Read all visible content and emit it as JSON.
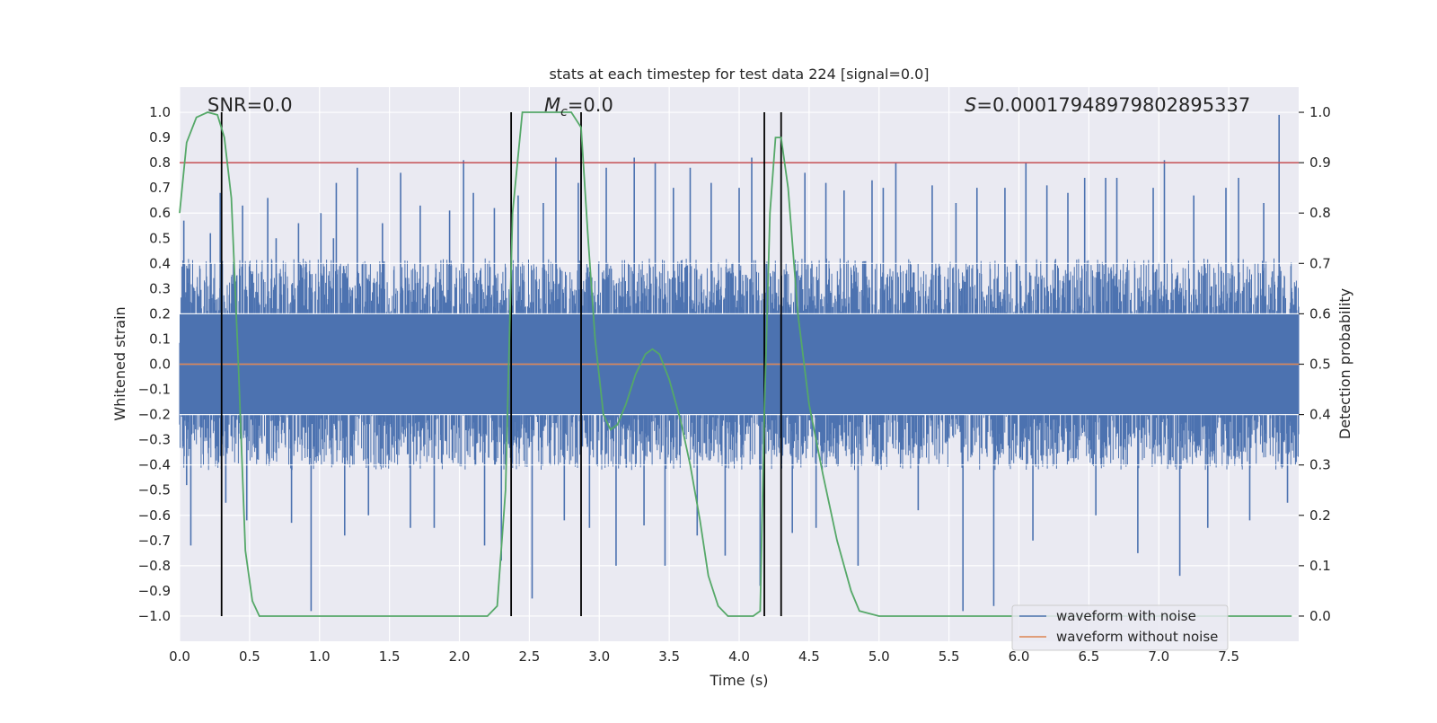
{
  "chart_data": {
    "type": "line",
    "title": "stats at each timestep for test data 224 [signal=0.0]",
    "xlabel": "Time (s)",
    "ylabel": "Whitened strain",
    "y2label": "Detection probability",
    "xlim": [
      0.0,
      8.0
    ],
    "ylim": [
      -1.1,
      1.1
    ],
    "y2lim": [
      -0.05,
      1.05
    ],
    "xticks": [
      0.0,
      0.5,
      1.0,
      1.5,
      2.0,
      2.5,
      3.0,
      3.5,
      4.0,
      4.5,
      5.0,
      5.5,
      6.0,
      6.5,
      7.0,
      7.5
    ],
    "xtick_labels": [
      "0.0",
      "0.5",
      "1.0",
      "1.5",
      "2.0",
      "2.5",
      "3.0",
      "3.5",
      "4.0",
      "4.5",
      "5.0",
      "5.5",
      "6.0",
      "6.5",
      "7.0",
      "7.5"
    ],
    "yticks": [
      1.0,
      0.9,
      0.8,
      0.7,
      0.6,
      0.5,
      0.4,
      0.3,
      0.2,
      0.1,
      0.0,
      -0.1,
      -0.2,
      -0.3,
      -0.4,
      -0.5,
      -0.6,
      -0.7,
      -0.8,
      -0.9,
      -1.0
    ],
    "ytick_labels": [
      "1.0",
      "0.9",
      "0.8",
      "0.7",
      "0.6",
      "0.5",
      "0.4",
      "0.3",
      "0.2",
      "0.1",
      "0.0",
      "−0.1",
      "−0.2",
      "−0.3",
      "−0.4",
      "−0.5",
      "−0.6",
      "−0.7",
      "−0.8",
      "−0.9",
      "−1.0"
    ],
    "y2ticks": [
      1.0,
      0.9,
      0.8,
      0.7,
      0.6,
      0.5,
      0.4,
      0.3,
      0.2,
      0.1,
      0.0
    ],
    "y2tick_labels": [
      "1.0",
      "0.9",
      "0.8",
      "0.7",
      "0.6",
      "0.5",
      "0.4",
      "0.3",
      "0.2",
      "0.1",
      "0.0"
    ],
    "grid": true,
    "legend_position": "bottom-right",
    "annotations": {
      "snr": "SNR=0.0",
      "mc_symbol": "M",
      "mc_subscript": "c",
      "mc_value": "=0.0",
      "s_symbol": "S",
      "s_value": "=0.00017948979802895337"
    },
    "threshold": {
      "value": 0.9,
      "axis": "y2",
      "color": "#c44e52"
    },
    "vertical_lines": [
      0.3,
      2.37,
      2.87,
      4.18,
      4.3
    ],
    "series": [
      {
        "name": "waveform with noise",
        "axis": "y",
        "color": "#4c72b0",
        "envelope": {
          "x_range": [
            0.0,
            8.0
          ],
          "typical_abs_max": 0.42
        },
        "peaks": [
          {
            "x": 0.03,
            "y": 0.57
          },
          {
            "x": 0.05,
            "y": -0.48
          },
          {
            "x": 0.08,
            "y": -0.72
          },
          {
            "x": 0.22,
            "y": 0.52
          },
          {
            "x": 0.29,
            "y": 0.68
          },
          {
            "x": 0.33,
            "y": -0.55
          },
          {
            "x": 0.45,
            "y": 0.63
          },
          {
            "x": 0.48,
            "y": -0.62
          },
          {
            "x": 0.63,
            "y": 0.66
          },
          {
            "x": 0.69,
            "y": 0.5
          },
          {
            "x": 0.8,
            "y": -0.63
          },
          {
            "x": 0.85,
            "y": 0.56
          },
          {
            "x": 0.94,
            "y": -0.98
          },
          {
            "x": 1.01,
            "y": 0.6
          },
          {
            "x": 1.1,
            "y": 0.5
          },
          {
            "x": 1.12,
            "y": 0.72
          },
          {
            "x": 1.18,
            "y": -0.68
          },
          {
            "x": 1.27,
            "y": 0.78
          },
          {
            "x": 1.35,
            "y": -0.6
          },
          {
            "x": 1.45,
            "y": 0.56
          },
          {
            "x": 1.58,
            "y": 0.76
          },
          {
            "x": 1.65,
            "y": -0.65
          },
          {
            "x": 1.72,
            "y": 0.63
          },
          {
            "x": 1.82,
            "y": -0.65
          },
          {
            "x": 1.93,
            "y": 0.61
          },
          {
            "x": 2.03,
            "y": 0.81
          },
          {
            "x": 2.1,
            "y": 0.68
          },
          {
            "x": 2.18,
            "y": -0.72
          },
          {
            "x": 2.25,
            "y": 0.62
          },
          {
            "x": 2.3,
            "y": -0.78
          },
          {
            "x": 2.37,
            "y": 0.52
          },
          {
            "x": 2.42,
            "y": 0.67
          },
          {
            "x": 2.52,
            "y": -0.93
          },
          {
            "x": 2.6,
            "y": 0.64
          },
          {
            "x": 2.69,
            "y": 0.82
          },
          {
            "x": 2.75,
            "y": -0.62
          },
          {
            "x": 2.85,
            "y": 0.72
          },
          {
            "x": 2.87,
            "y": 0.86
          },
          {
            "x": 2.93,
            "y": -0.65
          },
          {
            "x": 3.05,
            "y": 0.78
          },
          {
            "x": 3.12,
            "y": -0.8
          },
          {
            "x": 3.25,
            "y": 0.82
          },
          {
            "x": 3.32,
            "y": -0.64
          },
          {
            "x": 3.4,
            "y": 0.8
          },
          {
            "x": 3.47,
            "y": -0.8
          },
          {
            "x": 3.53,
            "y": 0.7
          },
          {
            "x": 3.65,
            "y": 0.78
          },
          {
            "x": 3.7,
            "y": -0.68
          },
          {
            "x": 3.8,
            "y": 0.72
          },
          {
            "x": 3.9,
            "y": -0.76
          },
          {
            "x": 4.0,
            "y": 0.7
          },
          {
            "x": 4.09,
            "y": 0.82
          },
          {
            "x": 4.15,
            "y": -0.88
          },
          {
            "x": 4.3,
            "y": 0.79
          },
          {
            "x": 4.38,
            "y": -0.67
          },
          {
            "x": 4.47,
            "y": 0.76
          },
          {
            "x": 4.55,
            "y": -0.65
          },
          {
            "x": 4.62,
            "y": 0.72
          },
          {
            "x": 4.75,
            "y": 0.69
          },
          {
            "x": 4.85,
            "y": -0.8
          },
          {
            "x": 4.95,
            "y": 0.73
          },
          {
            "x": 5.03,
            "y": 0.7
          },
          {
            "x": 5.12,
            "y": 0.8
          },
          {
            "x": 5.28,
            "y": -0.58
          },
          {
            "x": 5.38,
            "y": 0.71
          },
          {
            "x": 5.55,
            "y": 0.64
          },
          {
            "x": 5.6,
            "y": -0.98
          },
          {
            "x": 5.7,
            "y": 0.7
          },
          {
            "x": 5.82,
            "y": -0.96
          },
          {
            "x": 5.9,
            "y": 0.7
          },
          {
            "x": 6.05,
            "y": 0.8
          },
          {
            "x": 6.1,
            "y": -0.7
          },
          {
            "x": 6.2,
            "y": 0.71
          },
          {
            "x": 6.35,
            "y": 0.68
          },
          {
            "x": 6.47,
            "y": 0.74
          },
          {
            "x": 6.55,
            "y": -0.6
          },
          {
            "x": 6.62,
            "y": 0.74
          },
          {
            "x": 6.7,
            "y": 0.74
          },
          {
            "x": 6.85,
            "y": -0.75
          },
          {
            "x": 6.96,
            "y": 0.7
          },
          {
            "x": 7.04,
            "y": 0.81
          },
          {
            "x": 7.15,
            "y": -0.84
          },
          {
            "x": 7.25,
            "y": 0.67
          },
          {
            "x": 7.35,
            "y": -0.65
          },
          {
            "x": 7.48,
            "y": 0.7
          },
          {
            "x": 7.57,
            "y": 0.74
          },
          {
            "x": 7.65,
            "y": -0.62
          },
          {
            "x": 7.75,
            "y": 0.64
          },
          {
            "x": 7.86,
            "y": 0.99
          },
          {
            "x": 7.92,
            "y": -0.55
          }
        ]
      },
      {
        "name": "waveform without noise",
        "axis": "y",
        "color": "#dd8452",
        "x": [
          0.0,
          8.0
        ],
        "y": [
          0.0,
          0.0
        ]
      },
      {
        "name": "detection probability",
        "axis": "y2",
        "color": "#55a868",
        "x": [
          0.0,
          0.05,
          0.12,
          0.2,
          0.27,
          0.32,
          0.37,
          0.42,
          0.47,
          0.52,
          0.57,
          0.65,
          1.0,
          1.5,
          2.0,
          2.2,
          2.27,
          2.33,
          2.38,
          2.45,
          2.52,
          2.6,
          2.7,
          2.8,
          2.87,
          2.92,
          2.97,
          3.03,
          3.08,
          3.13,
          3.19,
          3.26,
          3.33,
          3.38,
          3.43,
          3.5,
          3.58,
          3.65,
          3.72,
          3.78,
          3.85,
          3.92,
          4.0,
          4.1,
          4.15,
          4.18,
          4.22,
          4.26,
          4.3,
          4.35,
          4.42,
          4.5,
          4.6,
          4.7,
          4.8,
          4.86,
          5.0,
          6.0,
          7.0,
          7.95
        ],
        "y": [
          0.8,
          0.94,
          0.99,
          1.0,
          0.995,
          0.95,
          0.83,
          0.5,
          0.13,
          0.03,
          0.0,
          0.0,
          0.0,
          0.0,
          0.0,
          0.0,
          0.02,
          0.25,
          0.8,
          1.0,
          1.0,
          1.0,
          1.0,
          1.0,
          0.97,
          0.75,
          0.55,
          0.4,
          0.37,
          0.38,
          0.42,
          0.48,
          0.52,
          0.53,
          0.52,
          0.47,
          0.39,
          0.3,
          0.19,
          0.08,
          0.02,
          0.0,
          0.0,
          0.0,
          0.01,
          0.4,
          0.8,
          0.95,
          0.95,
          0.85,
          0.6,
          0.42,
          0.28,
          0.15,
          0.05,
          0.01,
          0.0,
          0.0,
          0.0,
          0.0
        ]
      }
    ]
  }
}
